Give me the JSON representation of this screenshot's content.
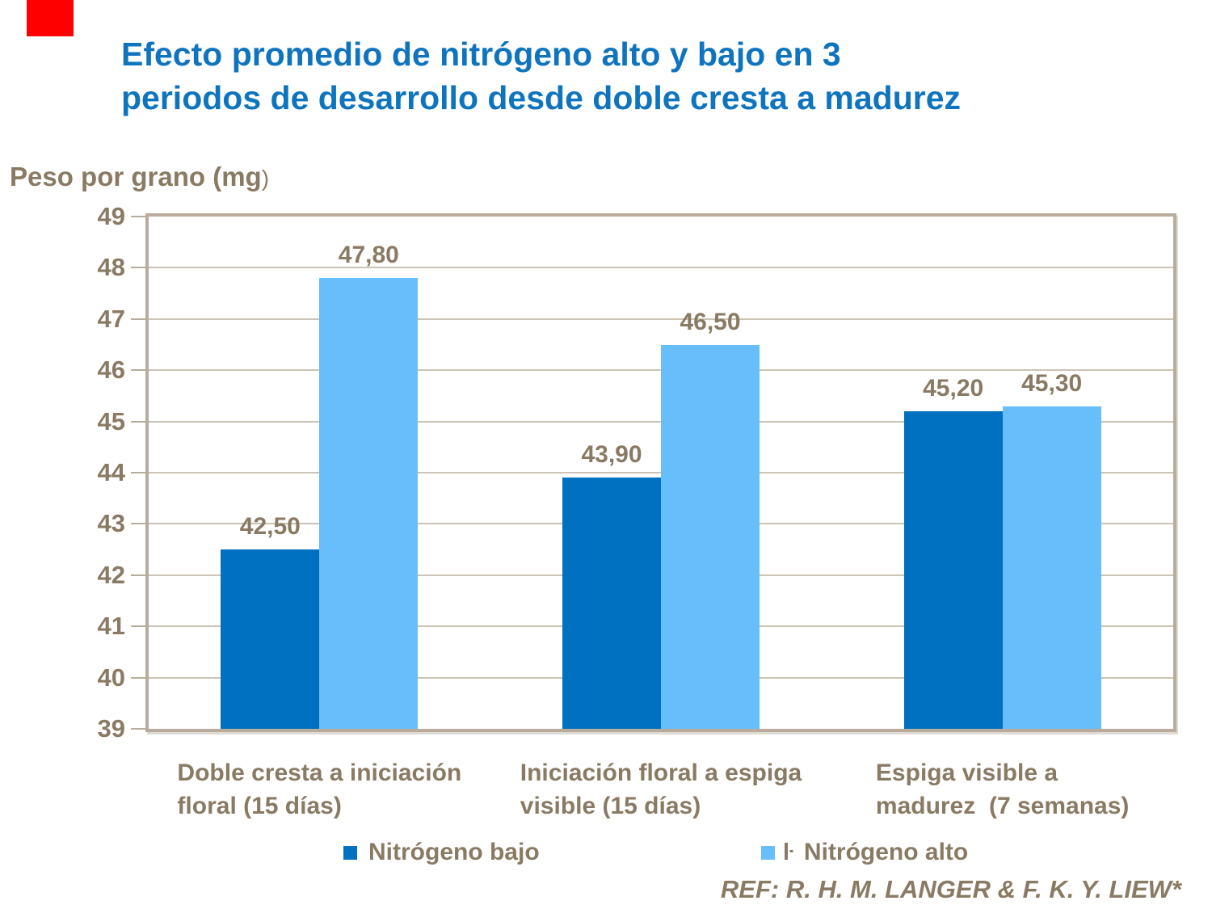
{
  "title": {
    "line1": "Efecto promedio de nitrógeno alto y bajo en 3",
    "line2": "periodos de desarrollo desde doble cresta a madurez"
  },
  "ylabel_main": "Peso por grano (mg",
  "ylabel_paren": ")",
  "footer": {
    "ref": "REF: R. H. M. LANGER & F. K. Y. LIEW*"
  },
  "legend": {
    "stray_glyph": "ŀ"
  },
  "colors": {
    "title_blue": "#0F74BE",
    "text_brown": "#8A7A63",
    "bar_low": "#0070C0",
    "bar_high": "#67BEFA",
    "frame_border": "#B9AC9C",
    "gridline": "#CCC3B5",
    "red_box": "#FF0000"
  },
  "chart_data": {
    "type": "bar",
    "title": "Efecto promedio de nitrógeno alto y bajo en 3 periodos de desarrollo desde doble cresta a madurez",
    "xlabel": "",
    "ylabel": "Peso por grano (mg)",
    "ylim": [
      39,
      49
    ],
    "yticks": [
      39,
      40,
      41,
      42,
      43,
      44,
      45,
      46,
      47,
      48,
      49
    ],
    "grid": true,
    "legend_position": "bottom",
    "categories": [
      "Doble cresta a iniciación floral (15 días)",
      "Iniciación floral a espiga visible (15 días)",
      "Espiga visible a madurez  (7 semanas)"
    ],
    "category_lines": [
      [
        "Doble cresta a iniciación",
        "floral (15 días)"
      ],
      [
        "Iniciación floral a espiga",
        "visible (15 días)"
      ],
      [
        "Espiga visible a",
        "madurez  (7 semanas)"
      ]
    ],
    "series": [
      {
        "name": "Nitrógeno bajo",
        "color": "#0070C0",
        "values": [
          42.5,
          43.9,
          45.2
        ],
        "labels": [
          "42,50",
          "43,90",
          "45,20"
        ]
      },
      {
        "name": "Nitrógeno alto",
        "color": "#67BEFA",
        "values": [
          47.8,
          46.5,
          45.3
        ],
        "labels": [
          "47,80",
          "46,50",
          "45,30"
        ]
      }
    ]
  }
}
